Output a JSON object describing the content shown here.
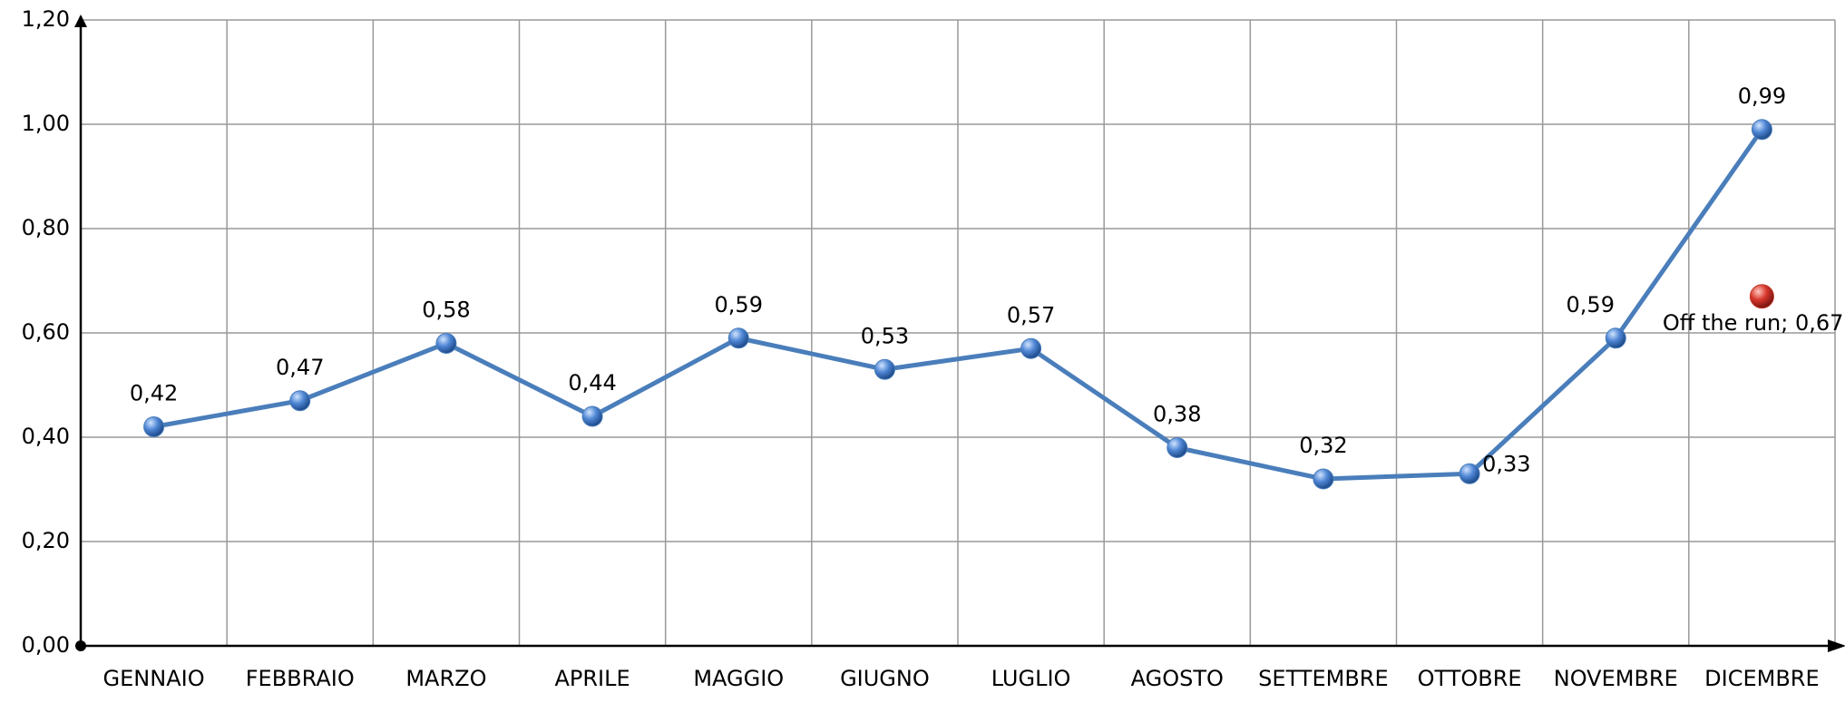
{
  "chart_data": {
    "type": "line",
    "categories": [
      "GENNAIO",
      "FEBBRAIO",
      "MARZO",
      "APRILE",
      "MAGGIO",
      "GIUGNO",
      "LUGLIO",
      "AGOSTO",
      "SETTEMBRE",
      "OTTOBRE",
      "NOVEMBRE",
      "DICEMBRE"
    ],
    "series": [
      {
        "color": "#4a7ebb",
        "values": [
          0.42,
          0.47,
          0.58,
          0.44,
          0.59,
          0.53,
          0.57,
          0.38,
          0.32,
          0.33,
          0.59,
          0.99
        ],
        "value_labels": [
          "0,42",
          "0,47",
          "0,58",
          "0,44",
          "0,59",
          "0,53",
          "0,57",
          "0,38",
          "0,32",
          "0,33",
          "0,59",
          "0,99"
        ]
      },
      {
        "color": "#c0392b",
        "values": [
          null,
          null,
          null,
          null,
          null,
          null,
          null,
          null,
          null,
          null,
          null,
          0.67
        ],
        "value_labels": [
          null,
          null,
          null,
          null,
          null,
          null,
          null,
          null,
          null,
          null,
          null,
          "Off the run; 0,67"
        ]
      }
    ],
    "ylim": [
      0,
      1.2
    ],
    "yticks": [
      {
        "value": 0,
        "label": "0,00"
      },
      {
        "value": 0.2,
        "label": "0,20"
      },
      {
        "value": 0.4,
        "label": "0,40"
      },
      {
        "value": 0.6,
        "label": "0,60"
      },
      {
        "value": 0.8,
        "label": "0,80"
      },
      {
        "value": 1.0,
        "label": "1,00"
      },
      {
        "value": 1.2,
        "label": "1,20"
      }
    ],
    "grid": true
  }
}
